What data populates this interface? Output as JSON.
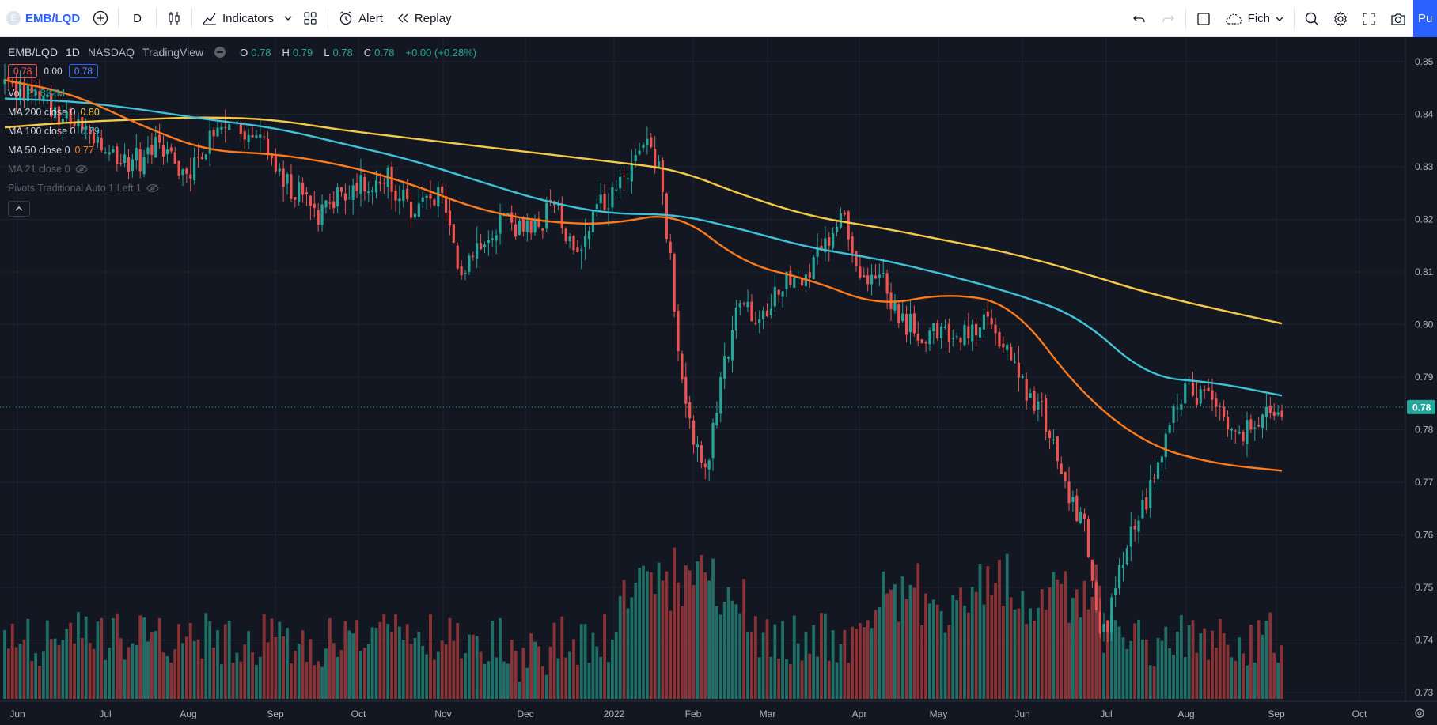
{
  "toolbar": {
    "symbol": "EMB/LQD",
    "symbol_badge": "E",
    "interval": "D",
    "indicators_label": "Indicators",
    "alert_label": "Alert",
    "replay_label": "Replay",
    "layout_label": "Fich",
    "publish_label": "Pu"
  },
  "legend": {
    "symbol": "EMB/LQD",
    "interval": "1D",
    "exchange": "NASDAQ",
    "source": "TradingView",
    "ohlc": {
      "o_label": "O",
      "o": "0.78",
      "h_label": "H",
      "h": "0.79",
      "l_label": "L",
      "l": "0.78",
      "c_label": "C",
      "c": "0.78",
      "change": "+0.00 (+0.28%)"
    },
    "bid": "0.78",
    "spread": "0.00",
    "ask": "0.78",
    "indicators": [
      {
        "name": "Vol",
        "value": "21.832M",
        "color": "#26a69a"
      },
      {
        "name": "MA 200 close 0",
        "value": "0.80",
        "color": "#f7c948"
      },
      {
        "name": "MA 100 close 0",
        "value": "0.79",
        "color": "#3fc1d6"
      },
      {
        "name": "MA 50 close 0",
        "value": "0.77",
        "color": "#ff7a1a"
      },
      {
        "name": "MA 21 close 0",
        "value": "",
        "color": "#5d606b"
      },
      {
        "name": "Pivots Traditional Auto 1 Left 1",
        "value": "",
        "color": "#5d606b"
      }
    ]
  },
  "colors": {
    "up": "#26a69a",
    "down": "#ef5350",
    "vol_up": "#1f6f67",
    "vol_down": "#8a3336",
    "ma200": "#f7c948",
    "ma100": "#3fc1d6",
    "ma50": "#ff7a1a",
    "last_price_bg": "#26a69a",
    "grid": "#1e222d",
    "background": "#131722"
  },
  "price_axis": {
    "ticks": [
      "0.85",
      "0.84",
      "0.83",
      "0.82",
      "0.81",
      "0.80",
      "0.79",
      "0.78",
      "0.77",
      "0.76",
      "0.75",
      "0.74",
      "0.73"
    ],
    "last_price": "0.78",
    "last_value": 0.7843,
    "ylim": [
      0.728,
      0.853
    ]
  },
  "time_axis": {
    "ticks": [
      "Jun",
      "Jul",
      "Aug",
      "Sep",
      "Oct",
      "Nov",
      "Dec",
      "2022",
      "Feb",
      "Mar",
      "Apr",
      "May",
      "Jun",
      "Jul",
      "Aug",
      "Sep",
      "Oct"
    ]
  },
  "chart_data": {
    "type": "candlestick",
    "x_range": [
      "2021-06",
      "2022-09"
    ],
    "ma200": [
      0.8375,
      0.8385,
      0.839,
      0.8395,
      0.839,
      0.837,
      0.8355,
      0.834,
      0.8325,
      0.831,
      0.8295,
      0.8245,
      0.8205,
      0.8185,
      0.816,
      0.8135,
      0.81,
      0.806,
      0.803,
      0.8002
    ],
    "ma100": [
      0.843,
      0.8425,
      0.841,
      0.839,
      0.8375,
      0.8345,
      0.8315,
      0.8275,
      0.8235,
      0.821,
      0.821,
      0.818,
      0.8145,
      0.8125,
      0.8095,
      0.806,
      0.8015,
      0.79,
      0.789,
      0.7865
    ],
    "ma50": [
      0.8465,
      0.844,
      0.838,
      0.833,
      0.8325,
      0.8305,
      0.827,
      0.822,
      0.8195,
      0.819,
      0.8215,
      0.8115,
      0.8085,
      0.8035,
      0.806,
      0.804,
      0.787,
      0.777,
      0.7735,
      0.7722
    ],
    "candle_count": 331,
    "volume_max": "high"
  }
}
